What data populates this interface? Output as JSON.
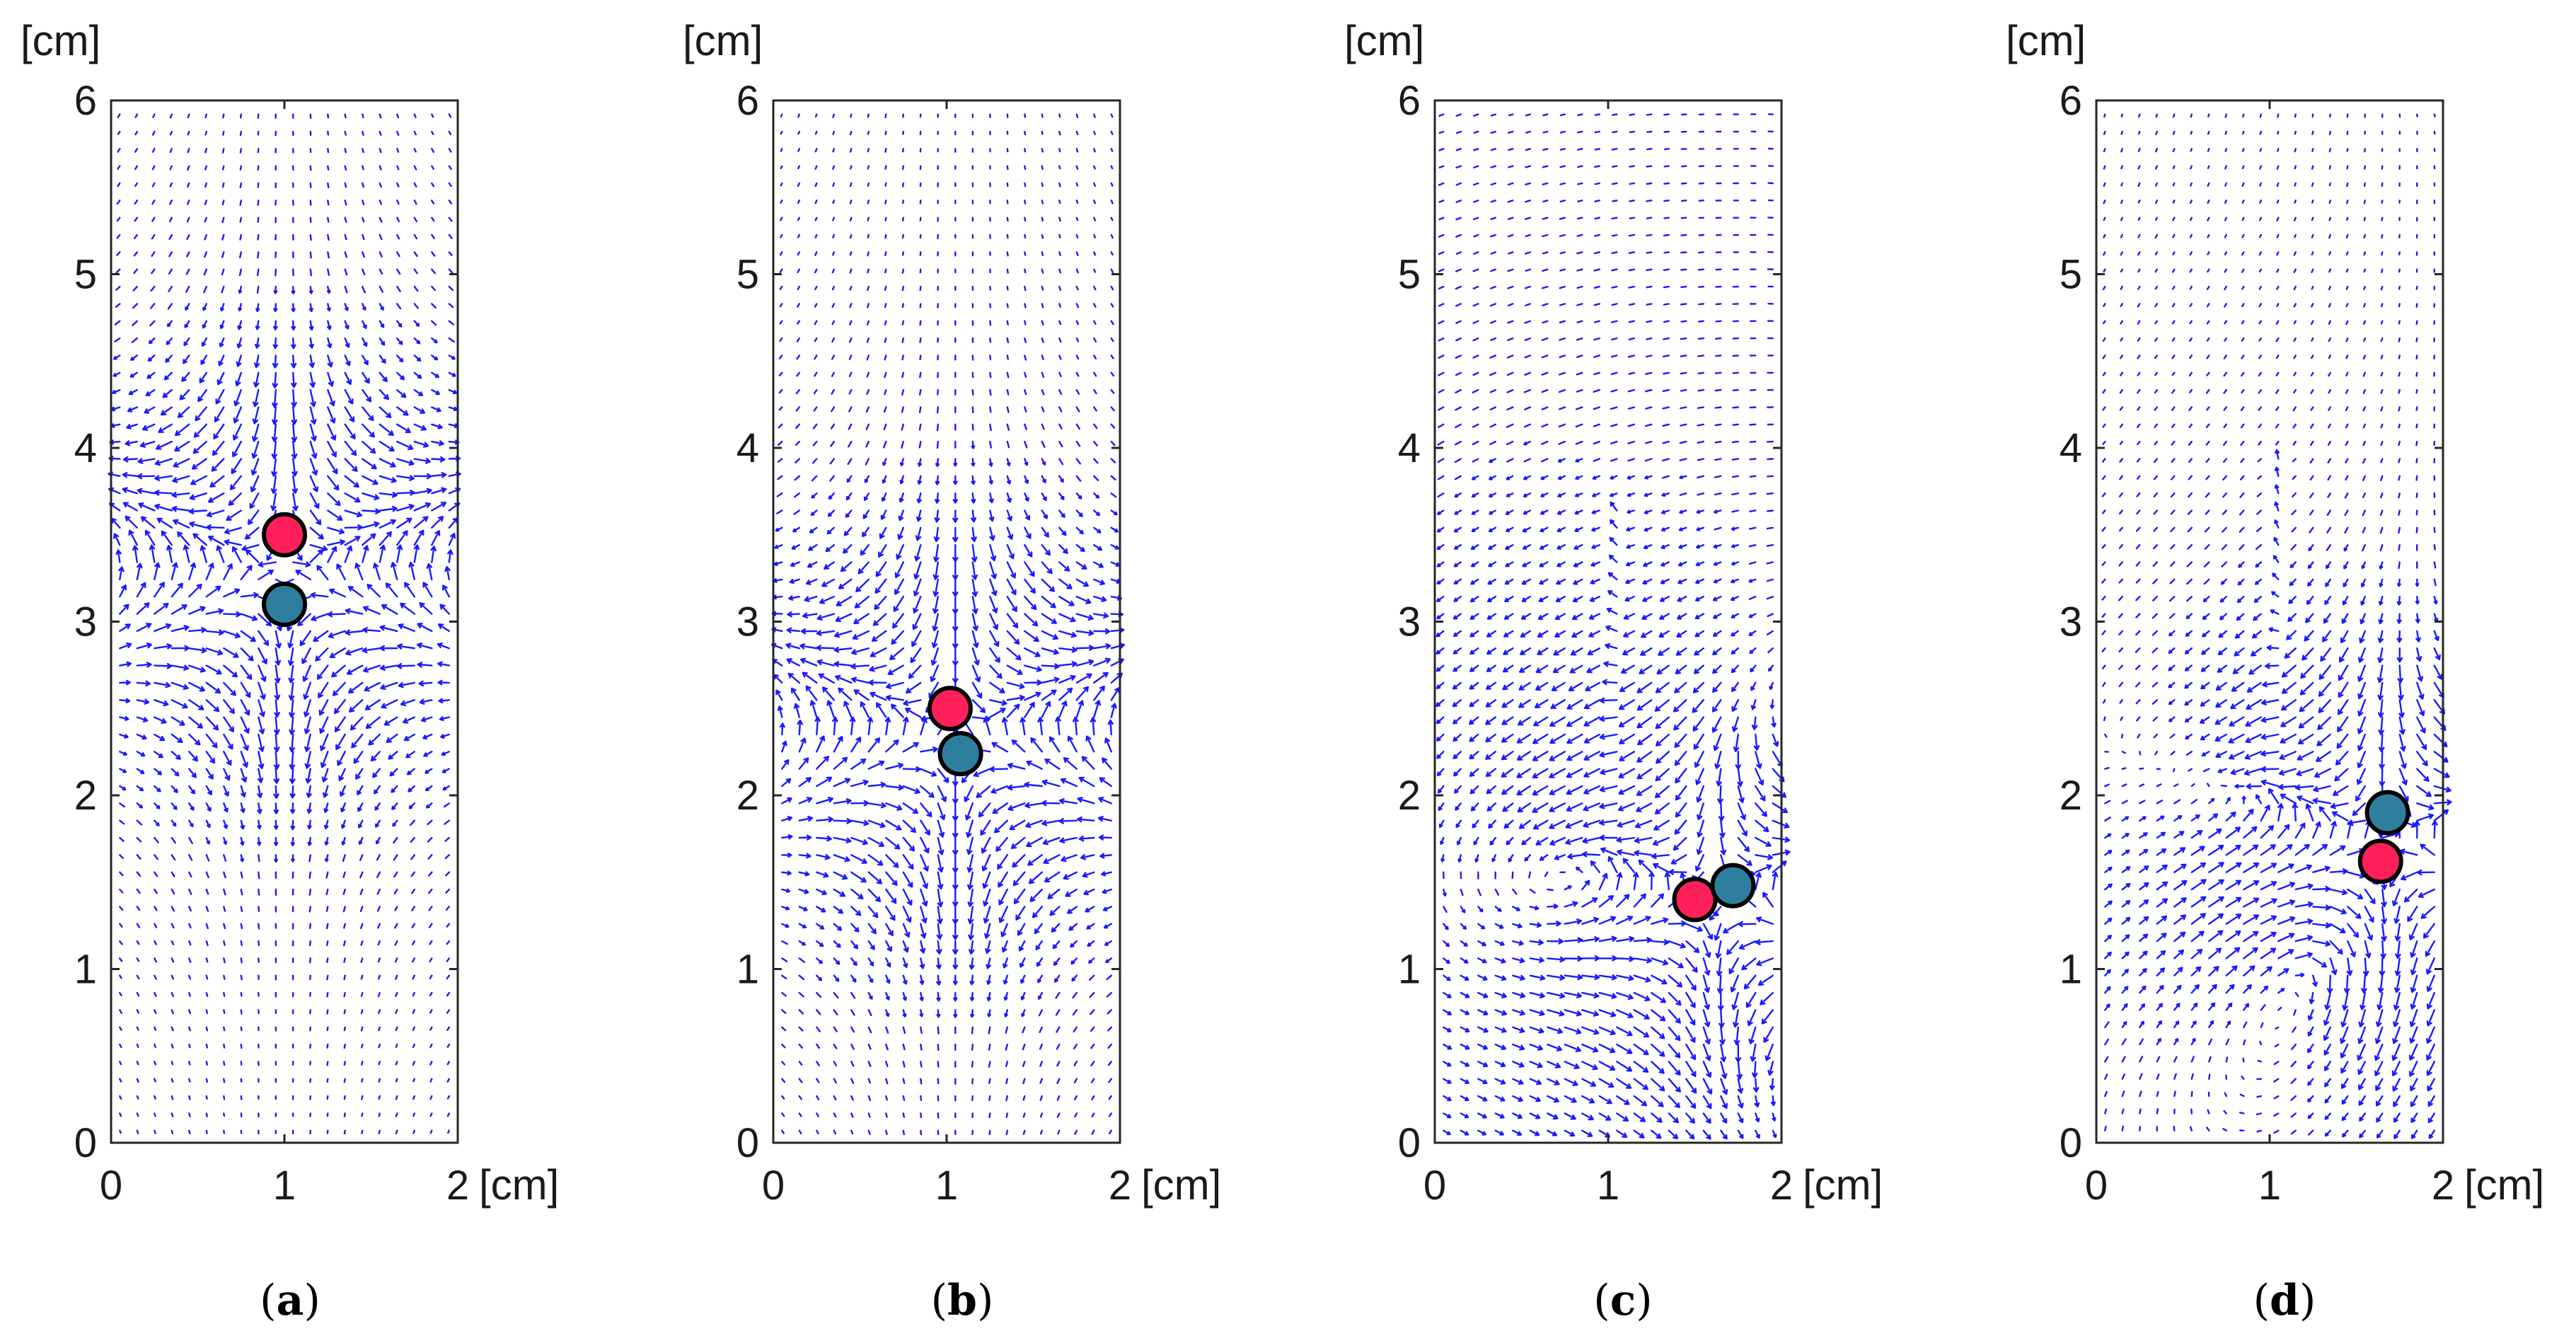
{
  "colors": {
    "vector": "#1a1aff",
    "particle_a": "#ff1f5a",
    "particle_b": "#2e7f9e",
    "outline": "#000000"
  },
  "axis_unit": "[cm]",
  "chart_data": [
    {
      "type": "scatter",
      "caption": "a",
      "x_ticks": [
        "0",
        "1",
        "2"
      ],
      "y_ticks": [
        "0",
        "1",
        "2",
        "3",
        "4",
        "5",
        "6"
      ],
      "xlim": [
        0,
        2
      ],
      "ylim": [
        0,
        6
      ],
      "grid": false,
      "particles": [
        {
          "x": 1.0,
          "y": 3.5,
          "color": "particle_a"
        },
        {
          "x": 1.0,
          "y": 3.1,
          "color": "particle_b"
        }
      ]
    },
    {
      "type": "scatter",
      "caption": "b",
      "x_ticks": [
        "0",
        "1",
        "2"
      ],
      "y_ticks": [
        "0",
        "1",
        "2",
        "3",
        "4",
        "5",
        "6"
      ],
      "xlim": [
        0,
        2
      ],
      "ylim": [
        0,
        6
      ],
      "grid": false,
      "particles": [
        {
          "x": 1.02,
          "y": 2.5,
          "color": "particle_a"
        },
        {
          "x": 1.08,
          "y": 2.24,
          "color": "particle_b"
        }
      ]
    },
    {
      "type": "scatter",
      "caption": "c",
      "x_ticks": [
        "0",
        "1",
        "2"
      ],
      "y_ticks": [
        "0",
        "1",
        "2",
        "3",
        "4",
        "5",
        "6"
      ],
      "xlim": [
        0,
        2
      ],
      "ylim": [
        0,
        6
      ],
      "grid": false,
      "particles": [
        {
          "x": 1.5,
          "y": 1.4,
          "color": "particle_a"
        },
        {
          "x": 1.72,
          "y": 1.48,
          "color": "particle_b"
        }
      ]
    },
    {
      "type": "scatter",
      "caption": "d",
      "x_ticks": [
        "0",
        "1",
        "2"
      ],
      "y_ticks": [
        "0",
        "1",
        "2",
        "3",
        "4",
        "5",
        "6"
      ],
      "xlim": [
        0,
        2
      ],
      "ylim": [
        0,
        6
      ],
      "grid": false,
      "particles": [
        {
          "x": 1.64,
          "y": 1.62,
          "color": "particle_a"
        },
        {
          "x": 1.68,
          "y": 1.9,
          "color": "particle_b"
        }
      ]
    }
  ]
}
